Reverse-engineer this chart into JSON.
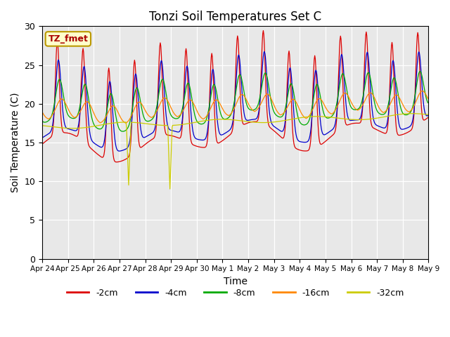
{
  "title": "Tonzi Soil Temperatures Set C",
  "xlabel": "Time",
  "ylabel": "Soil Temperature (C)",
  "ylim": [
    0,
    30
  ],
  "bg_color": "#e8e8e8",
  "xtick_labels": [
    "Apr 24",
    "Apr 25",
    "Apr 26",
    "Apr 27",
    "Apr 28",
    "Apr 29",
    "Apr 30",
    "May 1",
    "May 2",
    "May 3",
    "May 4",
    "May 5",
    "May 6",
    "May 7",
    "May 8",
    "May 9"
  ],
  "label_box_text": "TZ_fmet",
  "label_box_color": "#ffffcc",
  "label_box_edge": "#bb9900",
  "colors": {
    "-2cm": "#dd0000",
    "-4cm": "#0000cc",
    "-8cm": "#00aa00",
    "-16cm": "#ff8800",
    "-32cm": "#cccc00"
  },
  "legend_entries": [
    "-2cm",
    "-4cm",
    "-8cm",
    "-16cm",
    "-32cm"
  ],
  "legend_colors": [
    "#dd0000",
    "#0000cc",
    "#00aa00",
    "#ff8800",
    "#cccc00"
  ]
}
